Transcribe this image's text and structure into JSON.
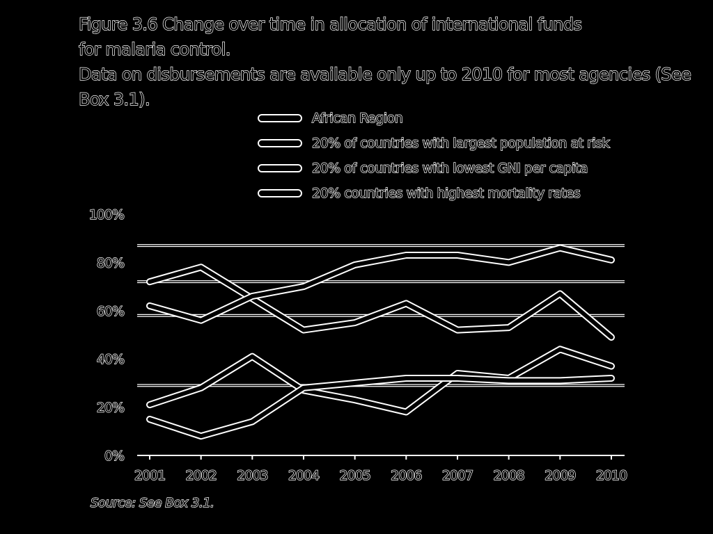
{
  "figure": {
    "title_line1": "Figure 3.6 Change over time in allocation of international funds",
    "title_line2": "for malaria control.",
    "subtitle_line1": "Data on disbursements are available only up to 2010 for most agencies (See",
    "subtitle_line2": "Box 3.1).",
    "source": "Source: See Box 3.1."
  },
  "colors": {
    "background": "#000000",
    "outline": "#ffffff"
  },
  "chart_data": {
    "type": "line",
    "x": [
      "2001",
      "2002",
      "2003",
      "2004",
      "2005",
      "2006",
      "2007",
      "2008",
      "2009",
      "2010"
    ],
    "y_ticks": [
      "0%",
      "20%",
      "40%",
      "60%",
      "80%",
      "100%"
    ],
    "ylim": [
      0,
      100
    ],
    "grid_values": [
      29,
      58,
      72,
      87
    ],
    "legend_position": "top",
    "series": [
      {
        "name": "African Region",
        "values": [
          72,
          78,
          65,
          52,
          55,
          63,
          52,
          53,
          67,
          49
        ]
      },
      {
        "name": "20% of countries with largest population at risk",
        "values": [
          62,
          56,
          66,
          70,
          79,
          83,
          83,
          80,
          86,
          81
        ]
      },
      {
        "name": "20% of countries with lowest GNI per capita",
        "values": [
          21,
          28,
          41,
          27,
          23,
          18,
          34,
          32,
          44,
          37
        ]
      },
      {
        "name": "20% countries with highest mortality rates",
        "values": [
          15,
          8,
          14,
          28,
          30,
          32,
          32,
          31,
          31,
          32
        ]
      }
    ]
  }
}
